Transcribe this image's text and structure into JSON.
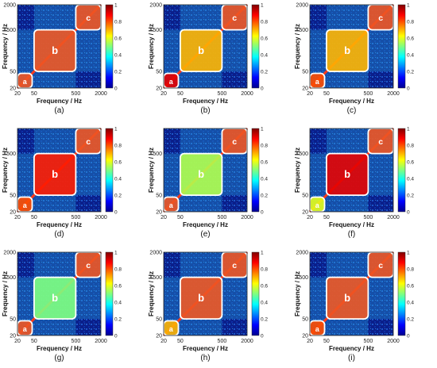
{
  "figure": {
    "panel_labels": [
      "(a)",
      "(b)",
      "(c)",
      "(d)",
      "(e)",
      "(f)",
      "(g)",
      "(h)",
      "(i)"
    ],
    "region_labels": [
      "a",
      "b",
      "c"
    ]
  },
  "colors": {
    "region_fill": "#ee5522",
    "region_outline": "#ffffff",
    "background": "#0a1f8a"
  },
  "chart_data": [
    {
      "type": "heatmap",
      "panel": "(a)",
      "xlabel": "Frequency / Hz",
      "ylabel": "Frequency / Hz",
      "x_ticks": [
        "20",
        "50",
        "500",
        "2000"
      ],
      "y_ticks": [
        "20",
        "50",
        "500",
        "2000"
      ],
      "x_scale": "log",
      "y_scale": "log",
      "xlim": [
        20,
        2000
      ],
      "ylim": [
        20,
        2000
      ],
      "colorbar": {
        "range": [
          0,
          1
        ],
        "ticks": [
          "0",
          "0.2",
          "0.4",
          "0.6",
          "0.8",
          "1"
        ]
      },
      "regions": [
        {
          "label": "a",
          "range": [
            20,
            45
          ],
          "level": 1.0
        },
        {
          "label": "b",
          "range": [
            50,
            500
          ],
          "level": 1.0
        },
        {
          "label": "c",
          "range": [
            500,
            2000
          ],
          "level": 1.0
        }
      ]
    },
    {
      "type": "heatmap",
      "panel": "(b)",
      "xlabel": "Frequency / Hz",
      "ylabel": "Frequency / Hz",
      "x_ticks": [
        "20",
        "50",
        "500",
        "2000"
      ],
      "y_ticks": [
        "20",
        "50",
        "500",
        "2000"
      ],
      "x_scale": "log",
      "y_scale": "log",
      "xlim": [
        20,
        2000
      ],
      "ylim": [
        20,
        2000
      ],
      "colorbar": {
        "range": [
          0,
          1
        ],
        "ticks": [
          "0",
          "0.2",
          "0.4",
          "0.6",
          "0.8",
          "1"
        ]
      },
      "regions": [
        {
          "label": "a",
          "range": [
            20,
            45
          ],
          "level": 0.9
        },
        {
          "label": "b",
          "range": [
            50,
            500
          ],
          "level": 0.7
        },
        {
          "label": "c",
          "range": [
            500,
            2000
          ],
          "level": 1.0
        }
      ]
    },
    {
      "type": "heatmap",
      "panel": "(c)",
      "xlabel": "Frequency / Hz",
      "ylabel": "Frequency / Hz",
      "x_ticks": [
        "20",
        "50",
        "500",
        "2000"
      ],
      "y_ticks": [
        "20",
        "50",
        "500",
        "2000"
      ],
      "x_scale": "log",
      "y_scale": "log",
      "xlim": [
        20,
        2000
      ],
      "ylim": [
        20,
        2000
      ],
      "colorbar": {
        "range": [
          0,
          1
        ],
        "ticks": [
          "0",
          "0.2",
          "0.4",
          "0.6",
          "0.8",
          "1"
        ]
      },
      "regions": [
        {
          "label": "a",
          "range": [
            20,
            45
          ],
          "level": 0.8
        },
        {
          "label": "b",
          "range": [
            50,
            500
          ],
          "level": 0.7
        },
        {
          "label": "c",
          "range": [
            500,
            2000
          ],
          "level": 1.0
        }
      ]
    },
    {
      "type": "heatmap",
      "panel": "(d)",
      "xlabel": "Frequency / Hz",
      "ylabel": "Frequency / Hz",
      "x_ticks": [
        "20",
        "50",
        "500",
        "2000"
      ],
      "y_ticks": [
        "20",
        "50",
        "500"
      ],
      "x_scale": "log",
      "y_scale": "log",
      "xlim": [
        20,
        2000
      ],
      "ylim": [
        20,
        2000
      ],
      "colorbar": {
        "range": [
          0,
          1
        ],
        "ticks": [
          "0",
          "0.2",
          "0.4",
          "0.6",
          "0.8",
          "1"
        ]
      },
      "regions": [
        {
          "label": "a",
          "range": [
            20,
            45
          ],
          "level": 0.8
        },
        {
          "label": "b",
          "range": [
            50,
            500
          ],
          "level": 0.85
        },
        {
          "label": "c",
          "range": [
            500,
            2000
          ],
          "level": 1.0
        }
      ]
    },
    {
      "type": "heatmap",
      "panel": "(e)",
      "xlabel": "Frequency / Hz",
      "ylabel": "Frequency / Hz",
      "x_ticks": [
        "20",
        "50",
        "500",
        "2000"
      ],
      "y_ticks": [
        "20",
        "50",
        "500"
      ],
      "x_scale": "log",
      "y_scale": "log",
      "xlim": [
        20,
        2000
      ],
      "ylim": [
        20,
        2000
      ],
      "colorbar": {
        "range": [
          0,
          1
        ],
        "ticks": [
          "0",
          "0.2",
          "0.4",
          "0.6",
          "0.8",
          "1"
        ]
      },
      "regions": [
        {
          "label": "a",
          "range": [
            20,
            45
          ],
          "level": 1.0
        },
        {
          "label": "b",
          "range": [
            50,
            500
          ],
          "level": 0.55
        },
        {
          "label": "c",
          "range": [
            500,
            2000
          ],
          "level": 1.0
        }
      ]
    },
    {
      "type": "heatmap",
      "panel": "(f)",
      "xlabel": "Frequency / Hz",
      "ylabel": "Frequency / Hz",
      "x_ticks": [
        "20",
        "50",
        "500",
        "2000"
      ],
      "y_ticks": [
        "20",
        "50",
        "500"
      ],
      "x_scale": "log",
      "y_scale": "log",
      "xlim": [
        20,
        2000
      ],
      "ylim": [
        20,
        2000
      ],
      "colorbar": {
        "range": [
          0,
          1
        ],
        "ticks": [
          "0",
          "0.2",
          "0.4",
          "0.6",
          "0.8",
          "1"
        ]
      },
      "regions": [
        {
          "label": "a",
          "range": [
            20,
            45
          ],
          "level": 0.6
        },
        {
          "label": "b",
          "range": [
            50,
            500
          ],
          "level": 0.9
        },
        {
          "label": "c",
          "range": [
            500,
            2000
          ],
          "level": 0.95
        }
      ]
    },
    {
      "type": "heatmap",
      "panel": "(g)",
      "xlabel": "Frequency / Hz",
      "ylabel": "Frequency / Hz",
      "x_ticks": [
        "20",
        "50",
        "500",
        "2000"
      ],
      "y_ticks": [
        "20",
        "50",
        "500",
        "2000"
      ],
      "x_scale": "log",
      "y_scale": "log",
      "xlim": [
        20,
        2000
      ],
      "ylim": [
        20,
        2000
      ],
      "colorbar": {
        "range": [
          0,
          1
        ],
        "ticks": [
          "0",
          "0.2",
          "0.4",
          "0.6",
          "0.8",
          "1"
        ]
      },
      "regions": [
        {
          "label": "a",
          "range": [
            20,
            45
          ],
          "level": 1.0
        },
        {
          "label": "b",
          "range": [
            50,
            500
          ],
          "level": 0.5
        },
        {
          "label": "c",
          "range": [
            500,
            2000
          ],
          "level": 1.0
        }
      ]
    },
    {
      "type": "heatmap",
      "panel": "(h)",
      "xlabel": "Frequency / Hz",
      "ylabel": "Frequency / Hz",
      "x_ticks": [
        "20",
        "50",
        "500",
        "2000"
      ],
      "y_ticks": [
        "20",
        "50",
        "500",
        "2000"
      ],
      "x_scale": "log",
      "y_scale": "log",
      "xlim": [
        20,
        2000
      ],
      "ylim": [
        20,
        2000
      ],
      "colorbar": {
        "range": [
          0,
          1
        ],
        "ticks": [
          "0",
          "0.2",
          "0.4",
          "0.6",
          "0.8",
          "1"
        ]
      },
      "regions": [
        {
          "label": "a",
          "range": [
            20,
            45
          ],
          "level": 0.7
        },
        {
          "label": "b",
          "range": [
            50,
            500
          ],
          "level": 0.95
        },
        {
          "label": "c",
          "range": [
            500,
            2000
          ],
          "level": 1.0
        }
      ]
    },
    {
      "type": "heatmap",
      "panel": "(i)",
      "xlabel": "Frequency / Hz",
      "ylabel": "Frequency / Hz",
      "x_ticks": [
        "20",
        "50",
        "500",
        "2000"
      ],
      "y_ticks": [
        "20",
        "50",
        "500",
        "2000"
      ],
      "x_scale": "log",
      "y_scale": "log",
      "xlim": [
        20,
        2000
      ],
      "ylim": [
        20,
        2000
      ],
      "colorbar": {
        "range": [
          0,
          1
        ],
        "ticks": [
          "0",
          "0.2",
          "0.4",
          "0.6",
          "0.8",
          "1"
        ]
      },
      "regions": [
        {
          "label": "a",
          "range": [
            20,
            45
          ],
          "level": 0.8
        },
        {
          "label": "b",
          "range": [
            50,
            500
          ],
          "level": 0.95
        },
        {
          "label": "c",
          "range": [
            500,
            2000
          ],
          "level": 1.0
        }
      ]
    }
  ]
}
